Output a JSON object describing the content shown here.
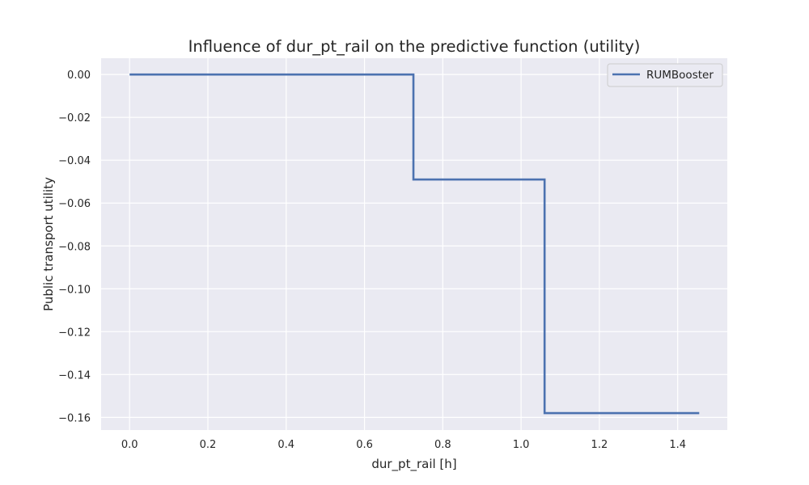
{
  "chart_data": {
    "type": "line",
    "title": "Influence of dur_pt_rail on the predictive function (utility)",
    "xlabel": "dur_pt_rail [h]",
    "ylabel": "Public transport utility",
    "xlim": [
      -0.0727,
      1.5267
    ],
    "ylim": [
      -0.1659,
      0.0076
    ],
    "xticks": [
      0.0,
      0.2,
      0.4,
      0.6,
      0.8,
      1.0,
      1.2,
      1.4
    ],
    "xtick_labels": [
      "0.0",
      "0.2",
      "0.4",
      "0.6",
      "0.8",
      "1.0",
      "1.2",
      "1.4"
    ],
    "yticks": [
      0.0,
      -0.02,
      -0.04,
      -0.06,
      -0.08,
      -0.1,
      -0.12,
      -0.14,
      -0.16
    ],
    "ytick_labels": [
      "0.00",
      "−0.02",
      "−0.04",
      "−0.06",
      "−0.08",
      "−0.10",
      "−0.12",
      "−0.14",
      "−0.16"
    ],
    "grid": true,
    "legend_position": "top-right",
    "series": [
      {
        "name": "RUMBooster",
        "color": "#4c72b0",
        "step": true,
        "x": [
          0.0,
          0.725,
          0.725,
          1.06,
          1.06,
          1.455
        ],
        "y": [
          0.0,
          0.0,
          -0.049,
          -0.049,
          -0.158,
          -0.158
        ]
      }
    ]
  }
}
